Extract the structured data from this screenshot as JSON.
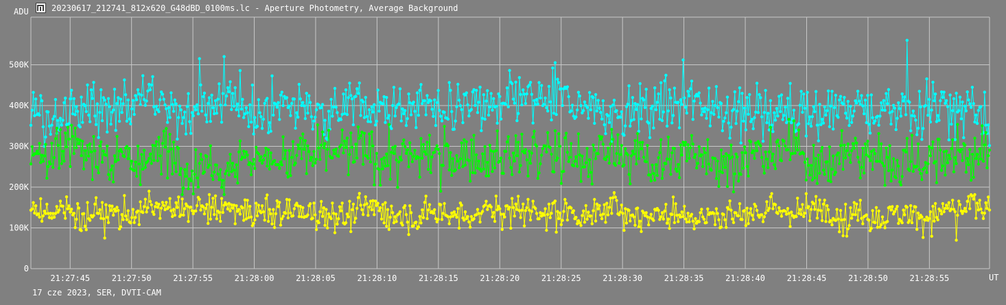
{
  "window": {
    "title": "20230617_212741_812x620_G48dBD_0100ms.lc - Aperture Photometry, Average Background",
    "icon": "lightcurve-app-icon"
  },
  "footer": {
    "text": "17 cze 2023, SER, DVTI-CAM"
  },
  "colors": {
    "background": "#808080",
    "grid": "#c8c8c8",
    "axis_text": "#ffffff",
    "series": [
      "#00ffff",
      "#00ff00",
      "#ffff00"
    ]
  },
  "chart_data": {
    "type": "line",
    "ylabel": "ADU",
    "xlabel": "UT",
    "y_ticks": [
      {
        "value": 0,
        "label": "0"
      },
      {
        "value": 100000,
        "label": "100K"
      },
      {
        "value": 200000,
        "label": "200K"
      },
      {
        "value": 300000,
        "label": "300K"
      },
      {
        "value": 400000,
        "label": "400K"
      },
      {
        "value": 500000,
        "label": "500K"
      }
    ],
    "ylim": [
      0,
      600000
    ],
    "x_ticks": [
      "21:27:45",
      "21:27:50",
      "21:27:55",
      "21:28:00",
      "21:28:05",
      "21:28:10",
      "21:28:15",
      "21:28:20",
      "21:28:25",
      "21:28:30",
      "21:28:35",
      "21:28:40",
      "21:28:45",
      "21:28:50",
      "21:28:55"
    ],
    "x_start": "21:27:41.8",
    "x_end": "21:28:59.9",
    "grid": true,
    "markers": true,
    "sample_count": 780,
    "series": [
      {
        "color": "#00ffff",
        "mean": 395000,
        "spread": 35000,
        "min": 300000,
        "max": 560000,
        "peaks": [
          {
            "t": "21:27:55.5",
            "value": 515000
          },
          {
            "t": "21:27:57.5",
            "value": 520000
          },
          {
            "t": "21:28:24.5",
            "value": 505000
          },
          {
            "t": "21:28:34.9",
            "value": 512000
          },
          {
            "t": "21:28:53.2",
            "value": 560000
          }
        ]
      },
      {
        "color": "#00ff00",
        "mean": 275000,
        "spread": 35000,
        "min": 165000,
        "max": 370000,
        "peaks": [
          {
            "t": "21:28:15.2",
            "value": 190000
          }
        ]
      },
      {
        "color": "#ffff00",
        "mean": 140000,
        "spread": 22000,
        "min": 68000,
        "max": 200000,
        "peaks": [
          {
            "t": "21:28:57.2",
            "value": 70000
          }
        ]
      }
    ]
  }
}
